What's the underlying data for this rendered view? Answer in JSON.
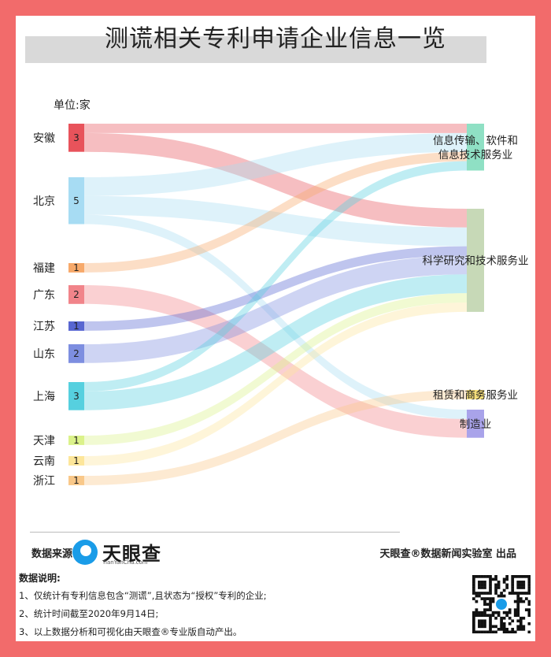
{
  "title": "测谎相关专利申请企业信息一览",
  "unit_label": "单位:家",
  "chart_data": {
    "type": "sankey",
    "sources": [
      {
        "name": "安徽",
        "value": 3,
        "color": "#e8535b"
      },
      {
        "name": "北京",
        "value": 5,
        "color": "#a7dcf3"
      },
      {
        "name": "福建",
        "value": 1,
        "color": "#f7a96a"
      },
      {
        "name": "广东",
        "value": 2,
        "color": "#f1848a"
      },
      {
        "name": "江苏",
        "value": 1,
        "color": "#5866d1"
      },
      {
        "name": "山东",
        "value": 2,
        "color": "#7d8ee0"
      },
      {
        "name": "上海",
        "value": 3,
        "color": "#56d0df"
      },
      {
        "name": "天津",
        "value": 1,
        "color": "#dbf28a"
      },
      {
        "name": "云南",
        "value": 1,
        "color": "#fde69a"
      },
      {
        "name": "浙江",
        "value": 1,
        "color": "#f9c889"
      }
    ],
    "targets": [
      {
        "name": "信息传输、软件和信息技术服务业",
        "line1": "信息传输、软件和",
        "line2": "信息技术服务业",
        "value": 5,
        "color": "#8fe0c4"
      },
      {
        "name": "科学研究和技术服务业",
        "line1": "科学研究和技术服务业",
        "line2": "",
        "value": 11,
        "color": "#c7d9b7"
      },
      {
        "name": "租赁和商务服务业",
        "line1": "租赁和商务服务业",
        "line2": "",
        "value": 1,
        "color": "#f8e07a"
      },
      {
        "name": "制造业",
        "line1": "制造业",
        "line2": "",
        "value": 3,
        "color": "#a9a3ea"
      }
    ],
    "links": [
      {
        "source": "安徽",
        "target": "信息传输、软件和信息技术服务业",
        "value": 1
      },
      {
        "source": "安徽",
        "target": "科学研究和技术服务业",
        "value": 2
      },
      {
        "source": "北京",
        "target": "信息传输、软件和信息技术服务业",
        "value": 2
      },
      {
        "source": "北京",
        "target": "科学研究和技术服务业",
        "value": 2
      },
      {
        "source": "北京",
        "target": "制造业",
        "value": 1
      },
      {
        "source": "福建",
        "target": "信息传输、软件和信息技术服务业",
        "value": 1
      },
      {
        "source": "广东",
        "target": "制造业",
        "value": 2
      },
      {
        "source": "江苏",
        "target": "科学研究和技术服务业",
        "value": 1
      },
      {
        "source": "山东",
        "target": "科学研究和技术服务业",
        "value": 2
      },
      {
        "source": "上海",
        "target": "信息传输、软件和信息技术服务业",
        "value": 1
      },
      {
        "source": "上海",
        "target": "科学研究和技术服务业",
        "value": 2
      },
      {
        "source": "天津",
        "target": "科学研究和技术服务业",
        "value": 1
      },
      {
        "source": "云南",
        "target": "科学研究和技术服务业",
        "value": 1
      },
      {
        "source": "浙江",
        "target": "租赁和商务服务业",
        "value": 1
      }
    ]
  },
  "footer": {
    "source_label": "数据来源:",
    "logo_text": "天眼查",
    "logo_sub": "TianYanCha.com",
    "lab_text": "天眼查®数据新闻实验室 出品",
    "notes_title": "数据说明:",
    "notes": [
      "1、仅统计有专利信息包含“测谎”,且状态为“授权”专利的企业;",
      "2、统计时间截至2020年9月14日;",
      "3、以上数据分析和可视化由天眼查®专业版自动产出。"
    ]
  }
}
